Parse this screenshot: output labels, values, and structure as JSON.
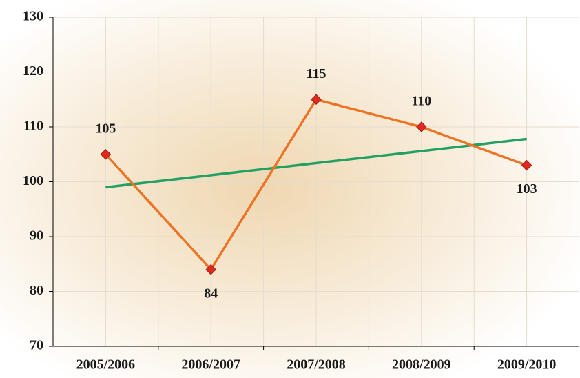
{
  "chart_data": {
    "type": "line",
    "categories": [
      "2005/2006",
      "2006/2007",
      "2007/2008",
      "2008/2009",
      "2009/2010"
    ],
    "series": [
      {
        "color": "#ec7424",
        "values": [
          105,
          84,
          115,
          110,
          103
        ]
      }
    ],
    "trendline": {
      "color": "#23a064",
      "values": [
        99,
        107.8
      ]
    },
    "marker_color": "#e0281e",
    "ylim": [
      70,
      130
    ],
    "yticks": [
      70,
      80,
      90,
      100,
      110,
      120,
      130
    ],
    "grid": true
  }
}
